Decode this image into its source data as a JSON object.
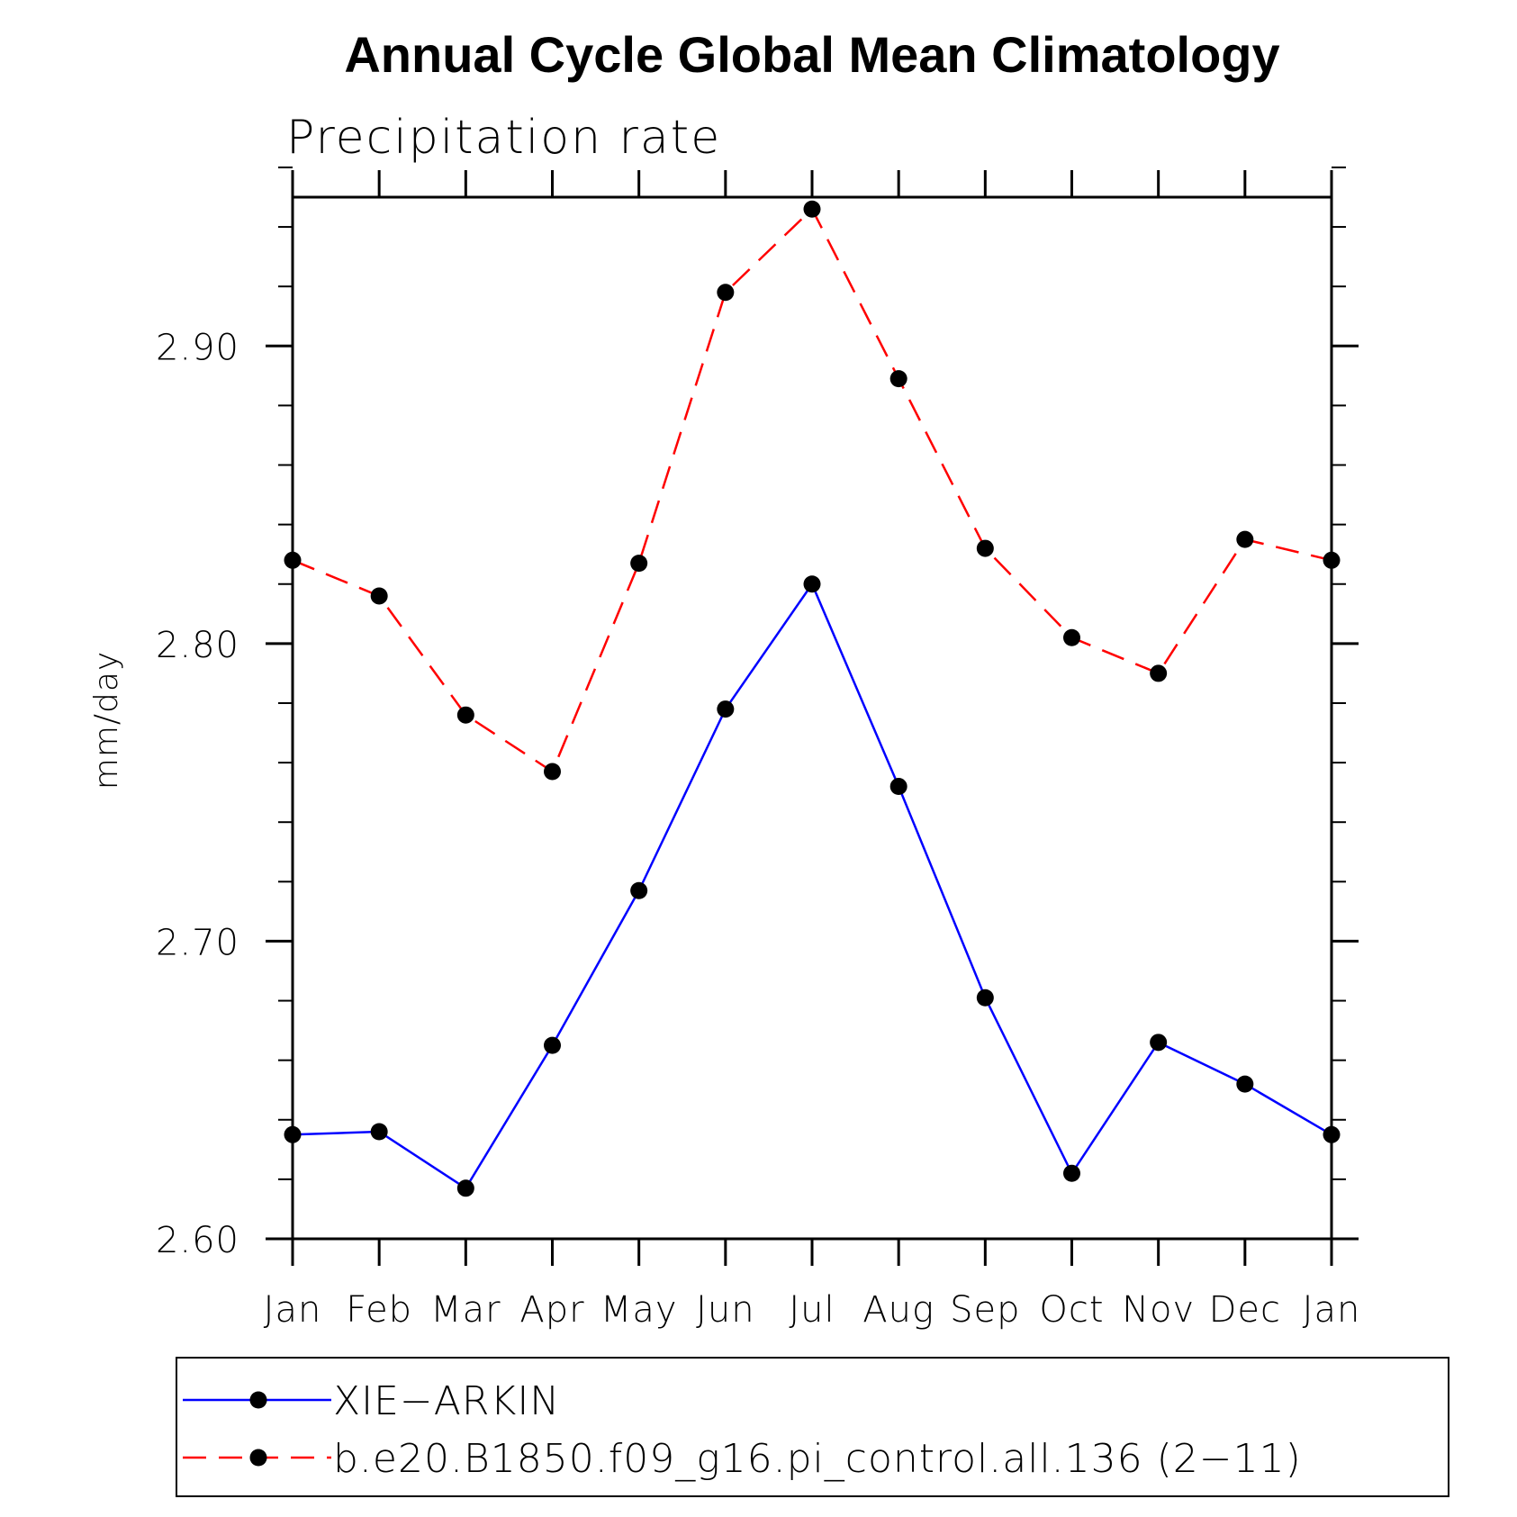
{
  "chart_data": {
    "type": "line",
    "title": "Annual Cycle Global Mean Climatology",
    "subtitle": "Precipitation rate",
    "xlabel": "",
    "ylabel": "mm/day",
    "categories": [
      "Jan",
      "Feb",
      "Mar",
      "Apr",
      "May",
      "Jun",
      "Jul",
      "Aug",
      "Sep",
      "Oct",
      "Nov",
      "Dec",
      "Jan"
    ],
    "ylim": [
      2.6,
      2.95
    ],
    "yticks": [
      2.6,
      2.7,
      2.8,
      2.9
    ],
    "ytick_labels": [
      "2.60",
      "2.70",
      "2.80",
      "2.90"
    ],
    "y_minor_step": 0.02,
    "grid": false,
    "legend_position": "bottom",
    "series": [
      {
        "name": "XIE−ARKIN",
        "color": "#0000ff",
        "style": "solid",
        "marker": "filled-circle",
        "values": [
          2.635,
          2.636,
          2.617,
          2.665,
          2.717,
          2.778,
          2.82,
          2.752,
          2.681,
          2.622,
          2.666,
          2.652,
          2.635
        ]
      },
      {
        "name": "b.e20.B1850.f09_g16.pi_control.all.136 (2−11)",
        "color": "#ff0000",
        "style": "dashed",
        "marker": "filled-circle",
        "values": [
          2.828,
          2.816,
          2.776,
          2.757,
          2.827,
          2.918,
          2.946,
          2.889,
          2.832,
          2.802,
          2.79,
          2.835,
          2.828
        ]
      }
    ]
  }
}
